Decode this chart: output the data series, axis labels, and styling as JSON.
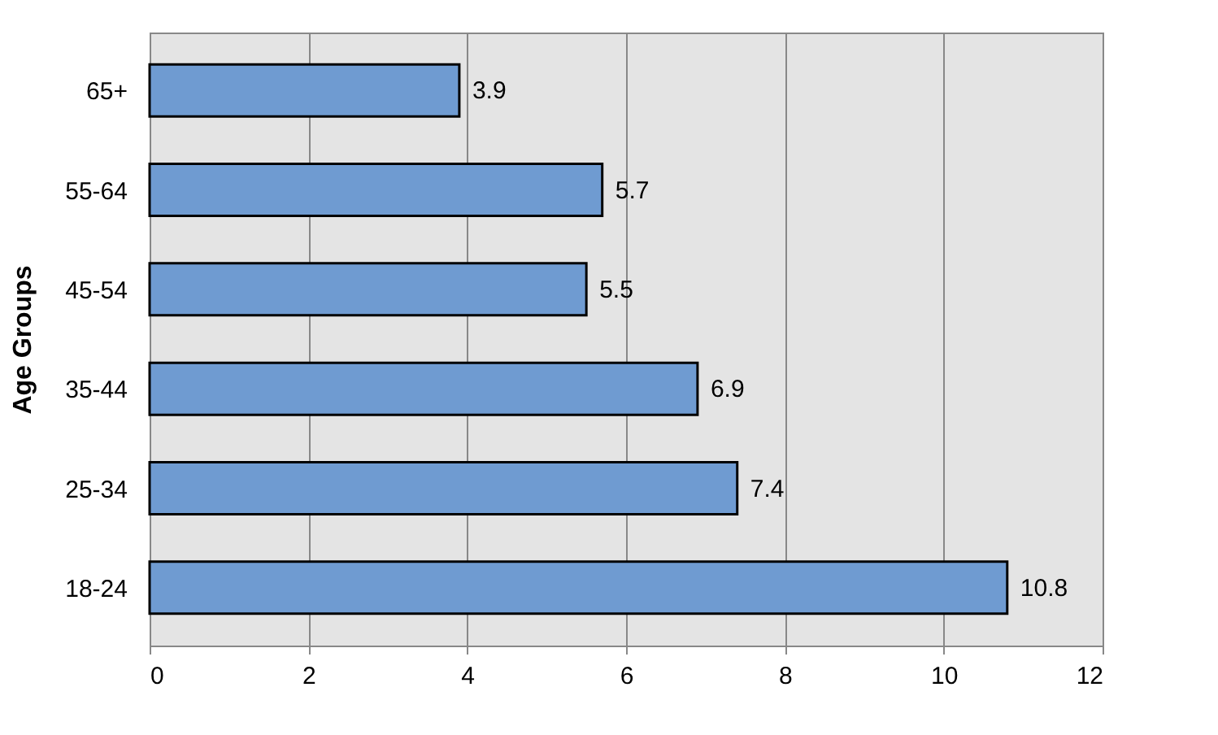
{
  "chart_data": {
    "type": "bar",
    "orientation": "horizontal",
    "ylabel": "Age Groups",
    "categories": [
      "65+",
      "55-64",
      "45-54",
      "35-44",
      "25-34",
      "18-24"
    ],
    "values": [
      3.9,
      5.7,
      5.5,
      6.9,
      7.4,
      10.8
    ],
    "color": "#6f9bd1",
    "xlim": [
      0,
      12
    ],
    "xticks": [
      0,
      2,
      4,
      6,
      8,
      10,
      12
    ],
    "grid": "x",
    "data_labels": true
  }
}
